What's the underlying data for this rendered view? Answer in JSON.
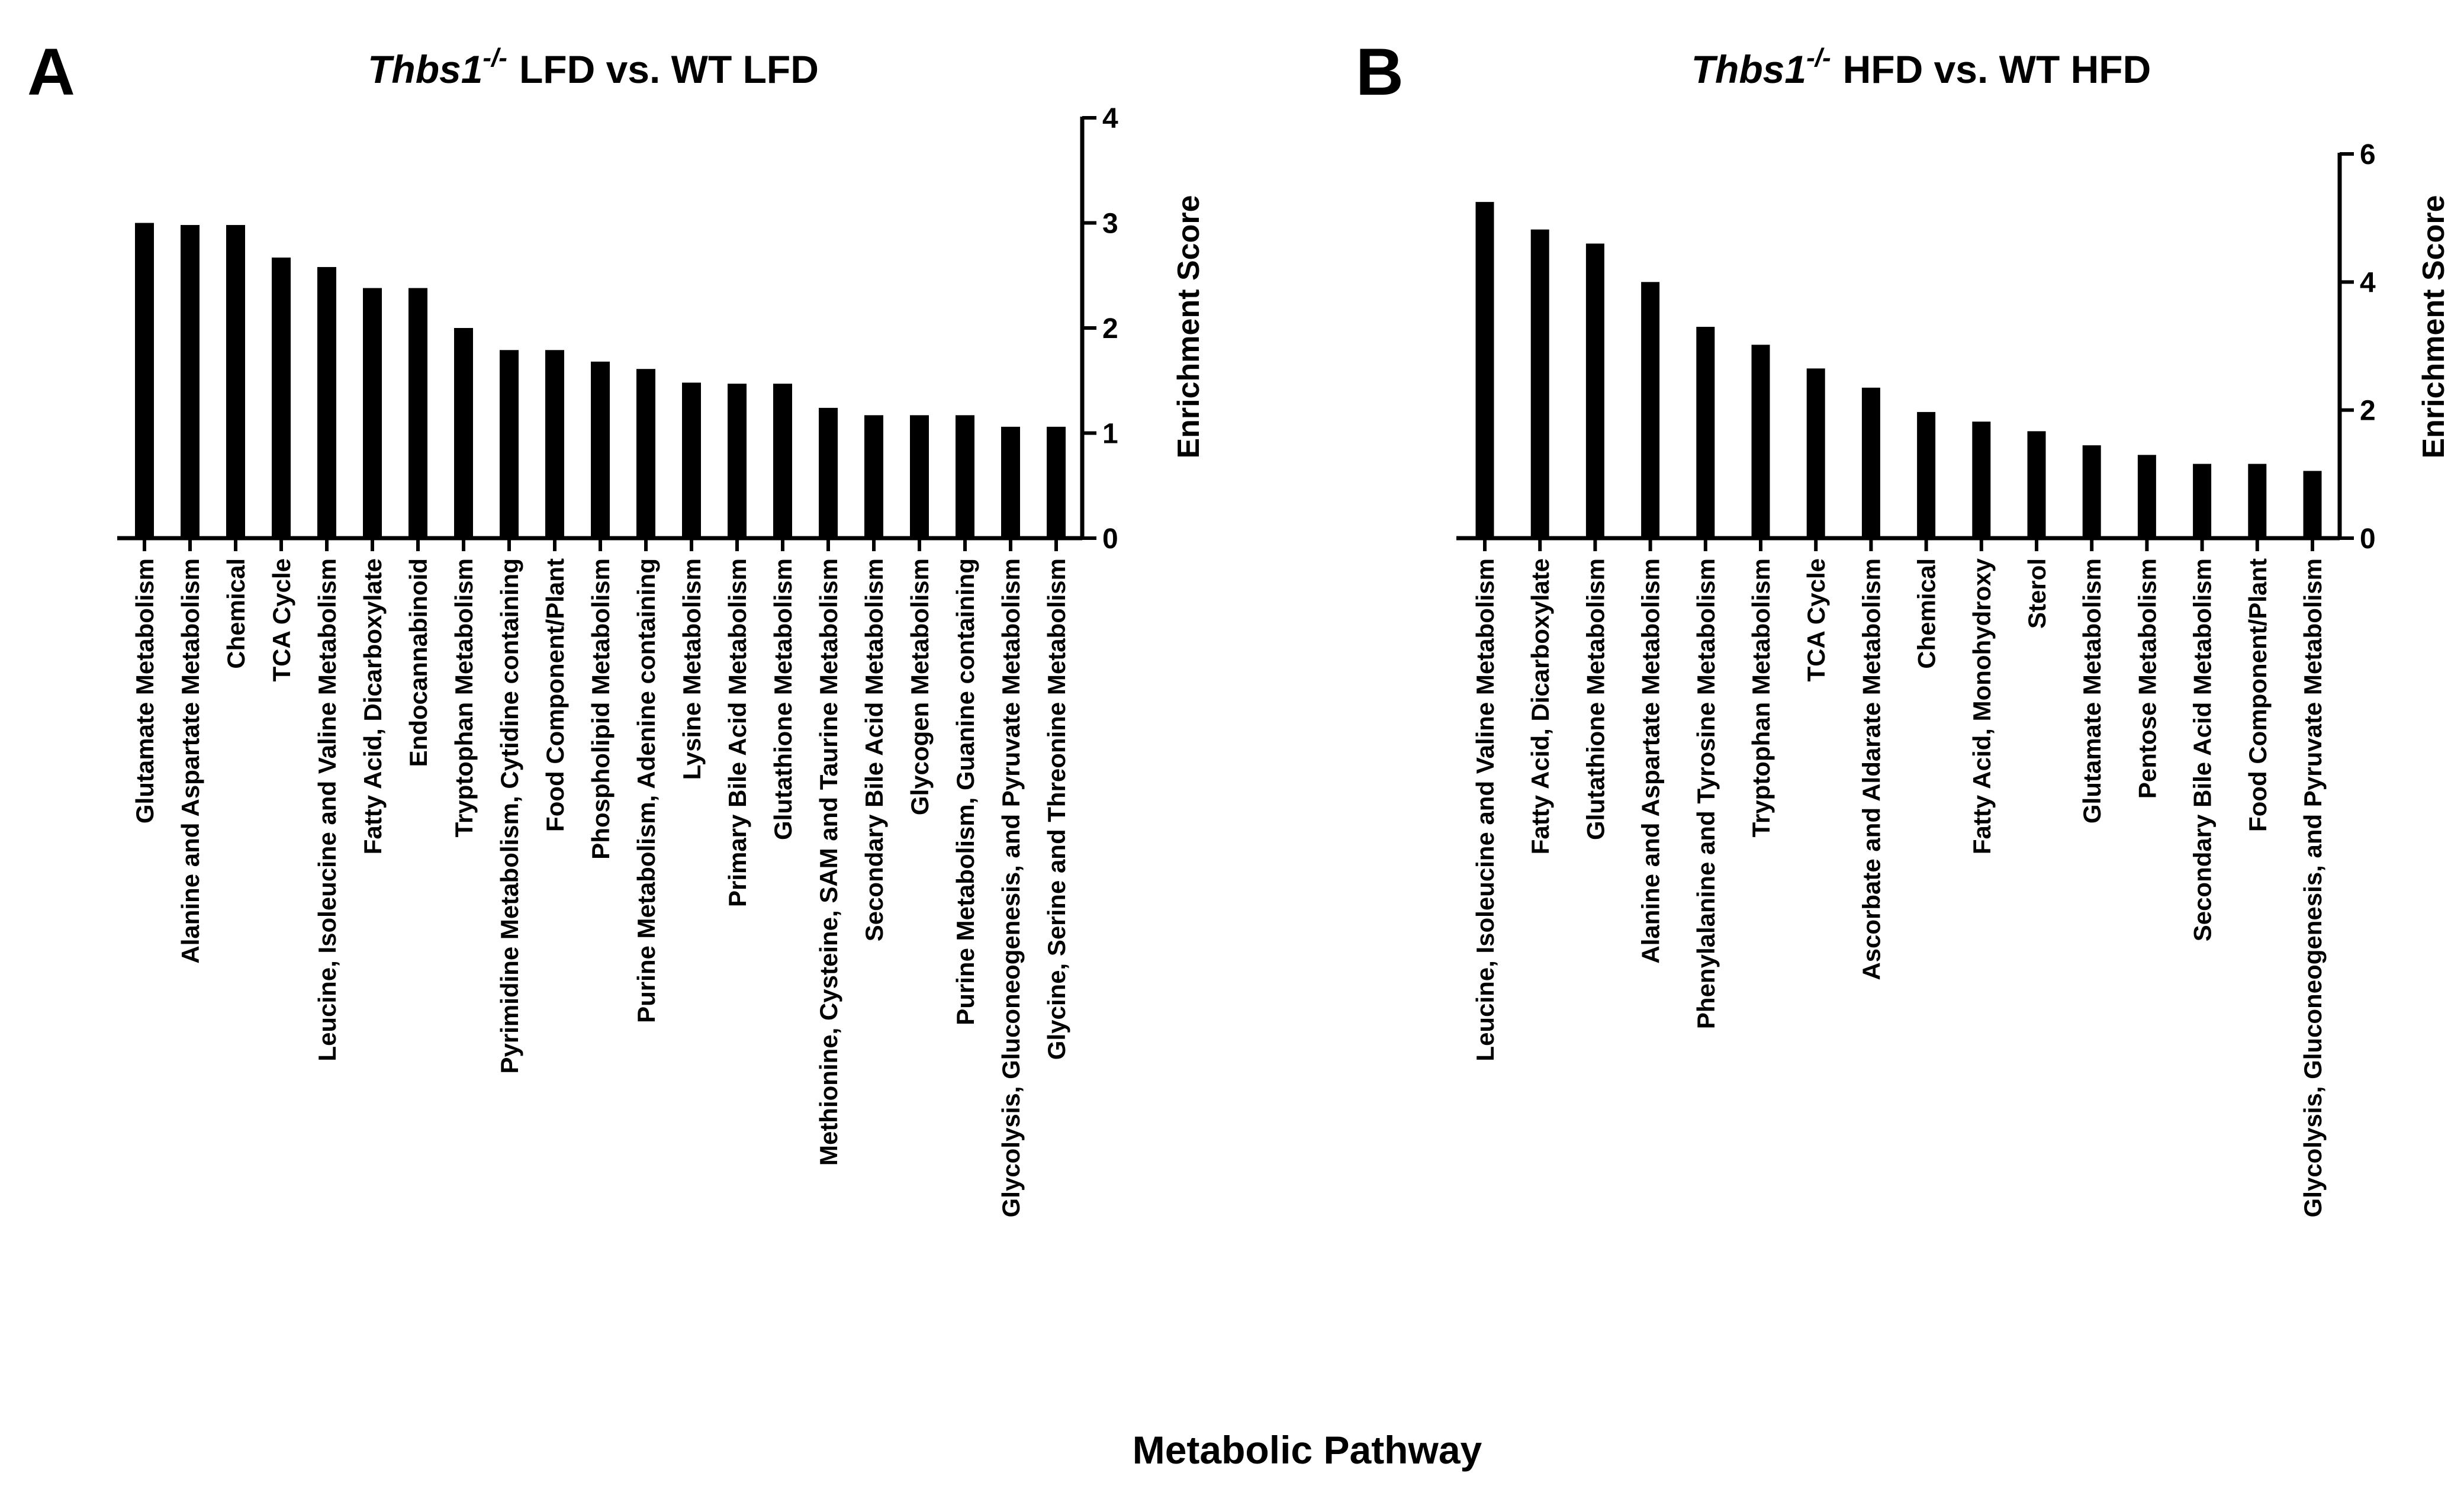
{
  "figure": {
    "x_axis_title": "Metabolic Pathway",
    "y_axis_label": "Enrichment Score"
  },
  "panels": [
    {
      "letter": "A",
      "title": {
        "gene": "Thbs1",
        "superscript": "-/-",
        "rest": "LFD vs.  WT  LFD"
      }
    },
    {
      "letter": "B",
      "title": {
        "gene": "Thbs1",
        "superscript": "-/-",
        "rest": "HFD vs.  WT  HFD"
      }
    }
  ],
  "chart_data": [
    {
      "type": "bar",
      "panel": "A",
      "title": "Thbs1-/- LFD vs. WT LFD",
      "xlabel": "Metabolic Pathway",
      "ylabel": "Enrichment Score",
      "ylim": [
        0,
        4
      ],
      "yticks": [
        0,
        1,
        2,
        3,
        4
      ],
      "yaxis_side": "right",
      "grid": false,
      "categories": [
        "Glutamate Metabolism",
        "Alanine and Aspartate Metabolism",
        "Chemical",
        "TCA Cycle",
        "Leucine, Isoleucine and Valine Metabolism",
        "Fatty Acid, Dicarboxylate",
        "Endocannabinoid",
        "Tryptophan Metabolism",
        "Pyrimidine Metabolism, Cytidine containing",
        "Food Component/Plant",
        "Phospholipid Metabolism",
        "Purine Metabolism, Adenine containing",
        "Lysine Metabolism",
        "Primary Bile Acid Metabolism",
        "Glutathione Metabolism",
        "Methionine, Cysteine, SAM and Taurine Metabolism",
        "Secondary Bile Acid Metabolism",
        "Glycogen Metabolism",
        "Purine Metabolism, Guanine containing",
        "Glycolysis, Gluconeogenesis, and Pyruvate Metabolism",
        "Glycine, Serine and Threonine Metabolism"
      ],
      "values": [
        3.0,
        2.98,
        2.98,
        2.67,
        2.58,
        2.38,
        2.38,
        2.0,
        1.79,
        1.79,
        1.68,
        1.61,
        1.48,
        1.47,
        1.47,
        1.24,
        1.17,
        1.17,
        1.17,
        1.06,
        1.06
      ]
    },
    {
      "type": "bar",
      "panel": "B",
      "title": "Thbs1-/- HFD vs. WT HFD",
      "xlabel": "Metabolic Pathway",
      "ylabel": "Enrichment Score",
      "ylim": [
        0,
        6
      ],
      "yticks": [
        0,
        2,
        4,
        6
      ],
      "yaxis_side": "right",
      "grid": false,
      "categories": [
        "Leucine, Isoleucine and Valine Metabolism",
        "Fatty Acid, Dicarboxylate",
        "Glutathione Metabolism",
        "Alanine and Aspartate Metabolism",
        "Phenylalanine and Tyrosine Metabolism",
        "Tryptophan Metabolism",
        "TCA Cycle",
        "Ascorbate and Aldarate Metabolism",
        "Chemical",
        "Fatty Acid, Monohydroxy",
        "Sterol",
        "Glutamate Metabolism",
        "Pentose Metabolism",
        "Secondary Bile Acid Metabolism",
        "Food Component/Plant",
        "Glycolysis, Gluconeogenesis, and Pyruvate Metabolism"
      ],
      "values": [
        5.25,
        4.82,
        4.6,
        4.0,
        3.3,
        3.02,
        2.65,
        2.35,
        1.97,
        1.82,
        1.67,
        1.45,
        1.3,
        1.16,
        1.16,
        1.05
      ]
    }
  ]
}
